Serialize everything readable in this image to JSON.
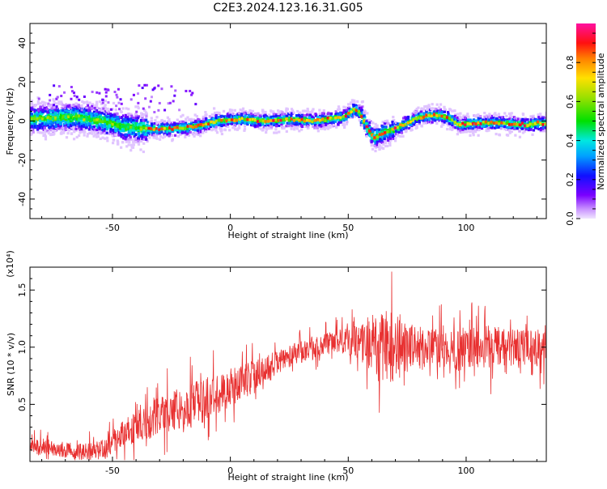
{
  "title": "C2E3.2024.123.16.31.G05",
  "chart_data": [
    {
      "type": "heatmap",
      "xlabel": "Height of straight line (km)",
      "ylabel": "Frequency (Hz)",
      "xlim": [
        -85,
        134
      ],
      "ylim": [
        -50,
        50
      ],
      "xticks": [
        -50,
        0,
        50,
        100
      ],
      "yticks": [
        -40,
        -20,
        0,
        20,
        40
      ],
      "grid": false,
      "colorbar": {
        "label": "Normalized spectral amplitude",
        "range": [
          0.0,
          1.0
        ],
        "ticks": [
          0.0,
          0.2,
          0.4,
          0.6,
          0.8
        ],
        "tick_labels": [
          "0.0",
          "0.2",
          "0.4",
          "0.6",
          "0.8"
        ],
        "colormap": "rainbow (magenta-blue-cyan-green-yellow-red-magenta)"
      },
      "ridge": {
        "x": [
          -85,
          -75,
          -65,
          -55,
          -45,
          -35,
          -25,
          -15,
          -5,
          5,
          15,
          25,
          35,
          42,
          48,
          53,
          55,
          58,
          61,
          65,
          72,
          80,
          87,
          92,
          97,
          105,
          115,
          125,
          134
        ],
        "y": [
          1,
          1.5,
          2,
          0,
          -3,
          -4,
          -4,
          -3,
          0,
          1,
          0,
          1,
          0,
          1,
          2,
          6,
          4,
          -3,
          -9,
          -6,
          -3,
          2,
          3,
          2,
          -2,
          -1,
          -1,
          -2,
          -1
        ]
      }
    },
    {
      "type": "line",
      "xlabel": "Height of straight line (km)",
      "ylabel": "SNR (10 * v/v)",
      "y_multiplier": "(x10⁴)",
      "xlim": [
        -85,
        134
      ],
      "ylim": [
        0,
        1.7
      ],
      "xticks": [
        -50,
        0,
        50,
        100
      ],
      "yticks": [
        0.5,
        1.0,
        1.5
      ],
      "ytick_labels": [
        "0.5",
        "1.0",
        "1.5"
      ],
      "series": [
        {
          "color": "#e83030",
          "envelope": {
            "x": [
              -85,
              -75,
              -65,
              -55,
              -45,
              -35,
              -25,
              -15,
              -5,
              5,
              15,
              25,
              35,
              45,
              55,
              62,
              68,
              75,
              85,
              95,
              105,
              115,
              125,
              134
            ],
            "y": [
              0.15,
              0.12,
              0.08,
              0.1,
              0.25,
              0.35,
              0.45,
              0.5,
              0.6,
              0.7,
              0.8,
              0.92,
              1.0,
              1.05,
              1.05,
              1.0,
              1.0,
              1.0,
              1.0,
              0.98,
              1.0,
              1.0,
              0.98,
              1.0
            ]
          },
          "spread": {
            "x": [
              -85,
              -55,
              -35,
              -15,
              5,
              25,
              45,
              55,
              62,
              66,
              72,
              85,
              100,
              134
            ],
            "y": [
              0.08,
              0.1,
              0.2,
              0.25,
              0.2,
              0.12,
              0.12,
              0.2,
              0.35,
              0.45,
              0.3,
              0.2,
              0.25,
              0.2
            ]
          }
        }
      ]
    }
  ]
}
